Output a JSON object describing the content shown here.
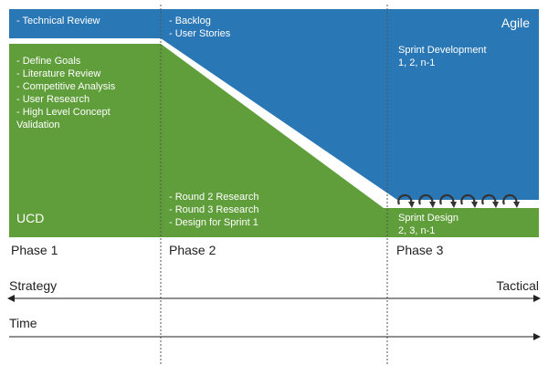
{
  "colors": {
    "agile_blue": "#2a77b6",
    "ucd_green": "#5f9e3a",
    "text_dark": "#222222",
    "divider": "#555555"
  },
  "tracks": {
    "ucd": {
      "name": "UCD",
      "phase1_items": [
        "- Define Goals",
        "- Literature Review",
        "- Competitive Analysis",
        "- User Research",
        "- High Level  Concept",
        "Validation"
      ],
      "phase2_items": [
        "- Round 2 Research",
        "- Round 3 Research",
        "- Design for Sprint 1"
      ],
      "phase3_label": "Sprint Design",
      "phase3_sub": "2, 3, n-1"
    },
    "agile": {
      "name": "Agile",
      "phase1_items": [
        "- Technical Review"
      ],
      "phase2_items": [
        "- Backlog",
        "- User Stories"
      ],
      "phase3_label": "Sprint Development",
      "phase3_sub": "1, 2, n-1",
      "cycle_icon_count": 6
    }
  },
  "phases": [
    "Phase 1",
    "Phase 2",
    "Phase 3"
  ],
  "axes": {
    "strategy_axis": {
      "left": "Strategy",
      "right": "Tactical"
    },
    "time_axis": {
      "label": "Time"
    }
  }
}
